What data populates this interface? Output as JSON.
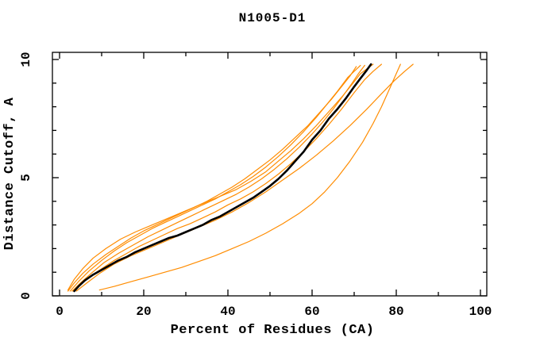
{
  "page": {
    "background": "#ffffff"
  },
  "chart_data": {
    "type": "line",
    "title": "N1005-D1",
    "xlabel": "Percent of Residues (CA)",
    "ylabel": "Distance Cutoff, A",
    "xlim": [
      0,
      100
    ],
    "ylim": [
      0,
      10
    ],
    "x_major_ticks": [
      0,
      20,
      40,
      60,
      80,
      100
    ],
    "x_minor_ticks": [
      10,
      30,
      50,
      70,
      90
    ],
    "y_major_ticks": [
      0,
      5,
      10
    ],
    "y_minor_ticks": [
      1,
      2,
      3,
      4,
      6,
      7,
      8,
      9
    ],
    "grid": false,
    "legend": "none",
    "frame": "box-with-mirrored-ticks",
    "colors": {
      "model_lines": "#ff8c00",
      "highlight_line": "#000000"
    },
    "series": [
      {
        "name": "model-line-1",
        "color": "#ff8c00",
        "width": 1.2,
        "points": [
          [
            2,
            0.2
          ],
          [
            3.5,
            0.55
          ],
          [
            5.5,
            0.95
          ],
          [
            8,
            1.35
          ],
          [
            11,
            1.75
          ],
          [
            14,
            2.1
          ],
          [
            17,
            2.45
          ],
          [
            20,
            2.75
          ],
          [
            23,
            3.0
          ],
          [
            26,
            3.25
          ],
          [
            29,
            3.5
          ],
          [
            32,
            3.75
          ],
          [
            35,
            4.0
          ],
          [
            38,
            4.3
          ],
          [
            41,
            4.6
          ],
          [
            44,
            4.95
          ],
          [
            47,
            5.35
          ],
          [
            50,
            5.75
          ],
          [
            53,
            6.2
          ],
          [
            56,
            6.7
          ],
          [
            59,
            7.2
          ],
          [
            62,
            7.8
          ],
          [
            64.5,
            8.3
          ],
          [
            67,
            8.85
          ],
          [
            69,
            9.3
          ],
          [
            70.5,
            9.7
          ]
        ]
      },
      {
        "name": "model-line-2",
        "color": "#ff8c00",
        "width": 1.2,
        "points": [
          [
            2.5,
            0.2
          ],
          [
            4.5,
            0.6
          ],
          [
            7,
            1.05
          ],
          [
            10,
            1.5
          ],
          [
            13,
            1.9
          ],
          [
            16,
            2.25
          ],
          [
            19,
            2.55
          ],
          [
            22,
            2.85
          ],
          [
            25,
            3.1
          ],
          [
            28,
            3.35
          ],
          [
            31,
            3.6
          ],
          [
            34,
            3.85
          ],
          [
            37,
            4.1
          ],
          [
            40,
            4.4
          ],
          [
            43,
            4.7
          ],
          [
            46,
            5.05
          ],
          [
            49,
            5.45
          ],
          [
            52,
            5.9
          ],
          [
            55,
            6.4
          ],
          [
            58,
            6.95
          ],
          [
            61,
            7.55
          ],
          [
            63.5,
            8.1
          ],
          [
            66,
            8.65
          ],
          [
            68.5,
            9.25
          ],
          [
            70,
            9.5
          ],
          [
            71.5,
            9.75
          ]
        ]
      },
      {
        "name": "model-line-3",
        "color": "#ff8c00",
        "width": 1.2,
        "points": [
          [
            3,
            0.2
          ],
          [
            5,
            0.55
          ],
          [
            7.5,
            0.95
          ],
          [
            10.5,
            1.4
          ],
          [
            14,
            1.8
          ],
          [
            17.5,
            2.15
          ],
          [
            21,
            2.5
          ],
          [
            24.5,
            2.8
          ],
          [
            28,
            3.1
          ],
          [
            31.5,
            3.4
          ],
          [
            35,
            3.7
          ],
          [
            38.5,
            4.0
          ],
          [
            42,
            4.3
          ],
          [
            45,
            4.6
          ],
          [
            48,
            4.95
          ],
          [
            51,
            5.35
          ],
          [
            54,
            5.8
          ],
          [
            57,
            6.3
          ],
          [
            60,
            6.85
          ],
          [
            62.5,
            7.35
          ],
          [
            65,
            7.9
          ],
          [
            67.5,
            8.5
          ],
          [
            69.5,
            9.0
          ],
          [
            71,
            9.4
          ],
          [
            72.5,
            9.75
          ]
        ]
      },
      {
        "name": "model-line-4",
        "color": "#ff8c00",
        "width": 1.2,
        "points": [
          [
            2,
            0.25
          ],
          [
            3.5,
            0.7
          ],
          [
            5.5,
            1.15
          ],
          [
            8,
            1.6
          ],
          [
            11,
            2.0
          ],
          [
            14.5,
            2.4
          ],
          [
            18,
            2.7
          ],
          [
            22,
            3.0
          ],
          [
            26,
            3.3
          ],
          [
            30,
            3.6
          ],
          [
            34,
            3.9
          ],
          [
            38,
            4.2
          ],
          [
            42,
            4.5
          ],
          [
            45.5,
            4.85
          ],
          [
            49,
            5.25
          ],
          [
            52,
            5.7
          ],
          [
            55,
            6.15
          ],
          [
            58,
            6.65
          ],
          [
            61,
            7.2
          ],
          [
            64,
            7.8
          ],
          [
            67,
            8.4
          ],
          [
            69.5,
            8.95
          ],
          [
            71.5,
            9.4
          ],
          [
            73,
            9.6
          ],
          [
            74.5,
            9.8
          ]
        ]
      },
      {
        "name": "model-line-5",
        "color": "#ff8c00",
        "width": 1.2,
        "points": [
          [
            3,
            0.2
          ],
          [
            5,
            0.5
          ],
          [
            7.5,
            0.85
          ],
          [
            10,
            1.15
          ],
          [
            13,
            1.5
          ],
          [
            16,
            1.8
          ],
          [
            19,
            2.1
          ],
          [
            22,
            2.35
          ],
          [
            25,
            2.6
          ],
          [
            28,
            2.85
          ],
          [
            31,
            3.05
          ],
          [
            34,
            3.3
          ],
          [
            37,
            3.55
          ],
          [
            40,
            3.85
          ],
          [
            43,
            4.1
          ],
          [
            46,
            4.4
          ],
          [
            49,
            4.75
          ],
          [
            52,
            5.15
          ],
          [
            55,
            5.6
          ],
          [
            58,
            6.1
          ],
          [
            61,
            6.65
          ],
          [
            64,
            7.25
          ],
          [
            67,
            7.9
          ],
          [
            70,
            8.6
          ],
          [
            72.5,
            9.15
          ],
          [
            74.5,
            9.5
          ],
          [
            76.5,
            9.8
          ]
        ]
      },
      {
        "name": "model-line-6",
        "color": "#ff8c00",
        "width": 1.2,
        "points": [
          [
            4,
            0.2
          ],
          [
            6.5,
            0.55
          ],
          [
            9.5,
            0.95
          ],
          [
            13,
            1.35
          ],
          [
            17,
            1.7
          ],
          [
            21,
            2.0
          ],
          [
            25,
            2.3
          ],
          [
            29,
            2.6
          ],
          [
            33,
            2.9
          ],
          [
            37,
            3.2
          ],
          [
            41,
            3.55
          ],
          [
            45,
            3.95
          ],
          [
            49,
            4.4
          ],
          [
            53,
            4.9
          ],
          [
            57,
            5.4
          ],
          [
            61,
            5.95
          ],
          [
            65,
            6.55
          ],
          [
            69,
            7.2
          ],
          [
            73,
            7.9
          ],
          [
            76.5,
            8.55
          ],
          [
            79.5,
            9.1
          ],
          [
            82,
            9.5
          ],
          [
            84,
            9.8
          ]
        ]
      },
      {
        "name": "model-line-7",
        "color": "#ff8c00",
        "width": 1.2,
        "points": [
          [
            9.5,
            0.25
          ],
          [
            13,
            0.4
          ],
          [
            17,
            0.6
          ],
          [
            21,
            0.8
          ],
          [
            25,
            1.0
          ],
          [
            29,
            1.2
          ],
          [
            33,
            1.45
          ],
          [
            37,
            1.7
          ],
          [
            41,
            2.0
          ],
          [
            45,
            2.3
          ],
          [
            49,
            2.65
          ],
          [
            53,
            3.05
          ],
          [
            57,
            3.5
          ],
          [
            60,
            3.9
          ],
          [
            63,
            4.4
          ],
          [
            66,
            5.0
          ],
          [
            69,
            5.7
          ],
          [
            72,
            6.5
          ],
          [
            74.5,
            7.3
          ],
          [
            76.5,
            8.0
          ],
          [
            78.5,
            8.8
          ],
          [
            80,
            9.4
          ],
          [
            81,
            9.8
          ]
        ]
      },
      {
        "name": "highlight-line",
        "color": "#000000",
        "width": 2.6,
        "points": [
          [
            3.5,
            0.2
          ],
          [
            4.5,
            0.4
          ],
          [
            6,
            0.65
          ],
          [
            8,
            0.9
          ],
          [
            10,
            1.1
          ],
          [
            12,
            1.3
          ],
          [
            14,
            1.5
          ],
          [
            16,
            1.65
          ],
          [
            18,
            1.85
          ],
          [
            20,
            2.0
          ],
          [
            22,
            2.15
          ],
          [
            24,
            2.3
          ],
          [
            26,
            2.45
          ],
          [
            28,
            2.55
          ],
          [
            30,
            2.7
          ],
          [
            32,
            2.85
          ],
          [
            34,
            3.0
          ],
          [
            36,
            3.2
          ],
          [
            38,
            3.35
          ],
          [
            40,
            3.55
          ],
          [
            42,
            3.75
          ],
          [
            44,
            3.95
          ],
          [
            46,
            4.15
          ],
          [
            48,
            4.4
          ],
          [
            50,
            4.65
          ],
          [
            52,
            4.95
          ],
          [
            54,
            5.3
          ],
          [
            56,
            5.7
          ],
          [
            58,
            6.1
          ],
          [
            60,
            6.6
          ],
          [
            62,
            7.0
          ],
          [
            64,
            7.5
          ],
          [
            66,
            7.9
          ],
          [
            68,
            8.35
          ],
          [
            70,
            8.85
          ],
          [
            71.5,
            9.2
          ],
          [
            73,
            9.55
          ],
          [
            74,
            9.8
          ]
        ]
      }
    ]
  }
}
